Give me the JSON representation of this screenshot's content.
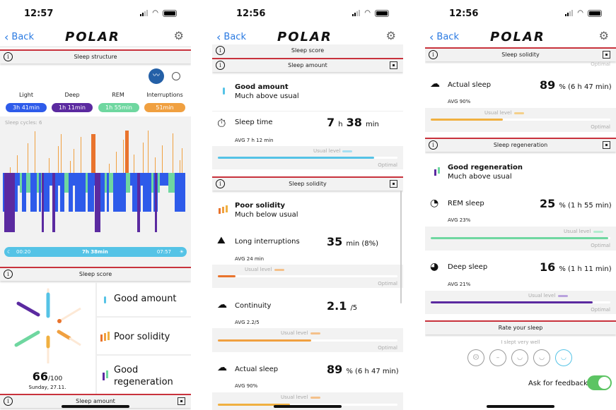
{
  "colors": {
    "light": "#2e5bea",
    "deep": "#5b2aa0",
    "rem": "#6fd7a0",
    "interruptions": "#f0a040",
    "amount": "#55c3e6",
    "accent": "#c8323c",
    "toggle": "#5cc463",
    "link": "#2a7ae2"
  },
  "common": {
    "back": "Back",
    "logo": "POLAR",
    "optimal": "Optimal",
    "usual_level": "Usual level"
  },
  "screens": [
    {
      "time": "12:57",
      "sleep_structure": {
        "title": "Sleep structure",
        "phases": [
          {
            "label": "Light",
            "value": "3h 41min"
          },
          {
            "label": "Deep",
            "value": "1h 11min"
          },
          {
            "label": "REM",
            "value": "1h 55min"
          },
          {
            "label": "Interruptions",
            "value": "51min"
          }
        ],
        "cycles": "Sleep cycles: 6",
        "start": "00:20",
        "duration": "7h 38min",
        "end": "07:57"
      },
      "sleep_score": {
        "title": "Sleep score",
        "score": "66",
        "max": "/100",
        "date": "Sunday, 27.11.",
        "items": [
          "Good amount",
          "Poor solidity",
          "Good regeneration"
        ]
      },
      "footer_header": "Sleep amount"
    },
    {
      "time": "12:56",
      "headers": {
        "score": "Sleep score",
        "amount": "Sleep amount",
        "solidity": "Sleep solidity"
      },
      "amount": {
        "title": "Good amount",
        "sub": "Much above usual",
        "sleep_time": {
          "label": "Sleep time",
          "h": "7",
          "h_unit": "h",
          "m": "38",
          "m_unit": "min",
          "avg": "AVG 7 h 12 min",
          "fill": 0.87
        }
      },
      "solidity": {
        "title": "Poor solidity",
        "sub": "Much below usual",
        "long_interruptions": {
          "label": "Long interruptions",
          "value": "35",
          "unit": "min (8%)",
          "avg": "AVG 24 min",
          "fill": 0.1
        },
        "continuity": {
          "label": "Continuity",
          "value": "2.1",
          "unit": "/5",
          "avg": "AVG 2.2/5",
          "fill": 0.52
        },
        "actual_sleep": {
          "label": "Actual sleep",
          "value": "89",
          "unit": "% (6 h 47 min)",
          "avg": "AVG 90%",
          "fill": 0.4
        }
      }
    },
    {
      "time": "12:56",
      "headers": {
        "solidity": "Sleep solidity",
        "regeneration": "Sleep regeneration",
        "rate": "Rate your sleep"
      },
      "actual_sleep": {
        "label": "Actual sleep",
        "value": "89",
        "unit": "% (6 h 47 min)",
        "avg": "AVG 90%"
      },
      "regeneration": {
        "title": "Good regeneration",
        "sub": "Much above usual",
        "rem": {
          "label": "REM sleep",
          "value": "25",
          "unit": "% (1 h 55 min)",
          "avg": "AVG 23%",
          "fill": 0.99
        },
        "deep": {
          "label": "Deep sleep",
          "value": "16",
          "unit": "% (1 h 11 min)",
          "avg": "AVG 21%",
          "fill": 0.9
        }
      },
      "rate": {
        "selected_label": "I slept very well",
        "selected_index": 4,
        "feedback_label": "Ask for feedback",
        "feedback_on": true
      }
    }
  ]
}
